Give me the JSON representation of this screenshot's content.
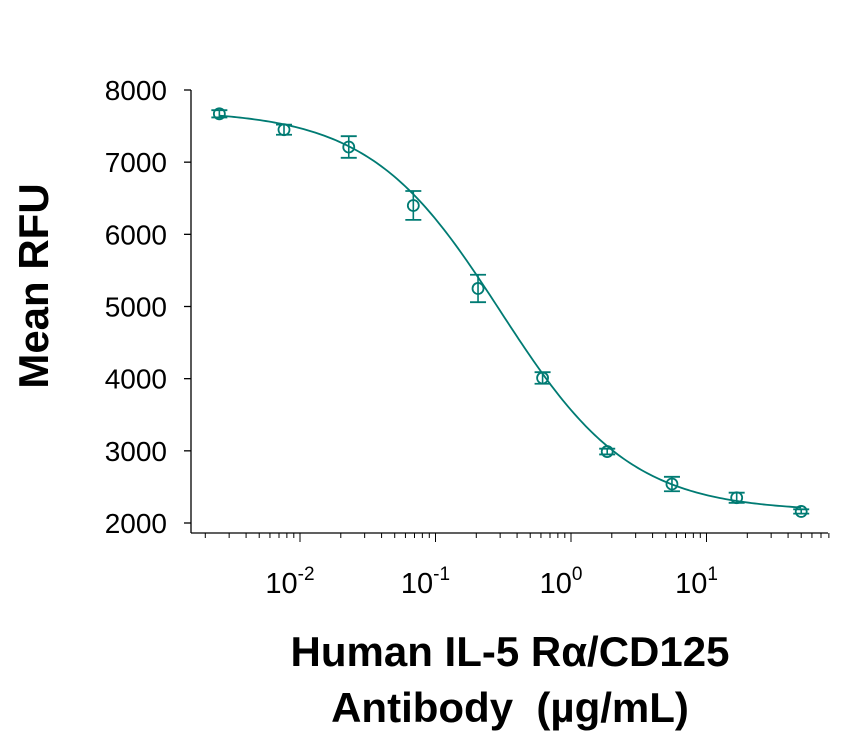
{
  "chart_data": {
    "type": "scatter",
    "title": "",
    "xlabel": "Human IL-5 Rα/CD125 Antibody (µg/mL)",
    "xlabel_lines": [
      "Human IL-5 Rα/CD125",
      "Antibody  (µg/mL)"
    ],
    "ylabel": "Mean RFU",
    "x_scale": "log",
    "xlim": [
      0.0019,
      75
    ],
    "ylim": [
      2000,
      8000
    ],
    "y_ticks": [
      2000,
      3000,
      4000,
      5000,
      6000,
      7000,
      8000
    ],
    "x_ticks": [
      {
        "value": 0.01,
        "base": "10",
        "exp": "-2"
      },
      {
        "value": 0.1,
        "base": "10",
        "exp": "-1"
      },
      {
        "value": 1,
        "base": "10",
        "exp": "0"
      },
      {
        "value": 10,
        "base": "10",
        "exp": "1"
      }
    ],
    "grid": false,
    "legend": null,
    "series": [
      {
        "name": "Mean RFU",
        "color": "#007b73",
        "marker": "open-circle",
        "x": [
          0.00254,
          0.00762,
          0.0229,
          0.0686,
          0.206,
          0.617,
          1.85,
          5.56,
          16.7,
          50
        ],
        "y": [
          7670,
          7450,
          7210,
          6400,
          5250,
          4010,
          2990,
          2540,
          2350,
          2160
        ],
        "error": [
          50,
          70,
          150,
          200,
          190,
          80,
          40,
          100,
          70,
          30
        ]
      }
    ],
    "fit_curve": {
      "type": "4PL",
      "color": "#007b73",
      "top": 7720,
      "bottom": 2160,
      "ec50": 0.3,
      "hill": 0.9
    }
  }
}
